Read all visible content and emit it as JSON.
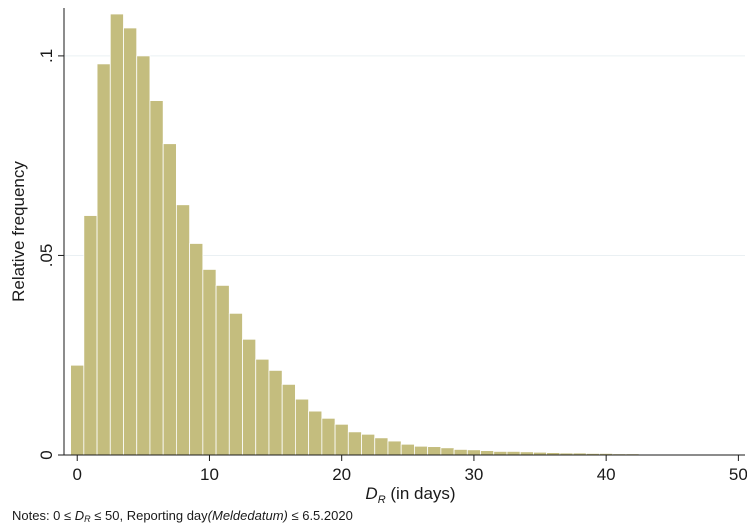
{
  "chart_data": {
    "type": "bar",
    "title": "",
    "ylabel": "Relative frequency",
    "xlabel": {
      "symbol": "D",
      "subscript": "R",
      "suffix": " (in days)"
    },
    "xlim": [
      -1,
      50.5
    ],
    "ylim": [
      0,
      0.112
    ],
    "xticks": [
      0,
      10,
      20,
      30,
      40,
      50
    ],
    "yticks": [
      0,
      0.05,
      0.1
    ],
    "ytick_labels": [
      "0",
      ".05",
      ".1"
    ],
    "grid": true,
    "bar_width": 1,
    "bar_color": "#c4bd7e",
    "bar_edge_color": "#ffffff",
    "x": [
      0,
      1,
      2,
      3,
      4,
      5,
      6,
      7,
      8,
      9,
      10,
      11,
      12,
      13,
      14,
      15,
      16,
      17,
      18,
      19,
      20,
      21,
      22,
      23,
      24,
      25,
      26,
      27,
      28,
      29,
      30,
      31,
      32,
      33,
      34,
      35,
      36,
      37,
      38,
      39,
      40,
      41,
      42,
      43,
      44,
      45,
      46,
      47,
      48,
      49,
      50
    ],
    "values": [
      0.0225,
      0.06,
      0.098,
      0.1105,
      0.107,
      0.1,
      0.0888,
      0.078,
      0.0627,
      0.053,
      0.0465,
      0.0425,
      0.0355,
      0.029,
      0.024,
      0.0212,
      0.0177,
      0.014,
      0.011,
      0.0092,
      0.0077,
      0.0058,
      0.0052,
      0.0043,
      0.0035,
      0.0027,
      0.0022,
      0.0021,
      0.0018,
      0.0014,
      0.0013,
      0.0011,
      0.0009,
      0.0009,
      0.0008,
      0.0007,
      0.0006,
      0.0005,
      0.0005,
      0.0004,
      0.0004,
      0.0003,
      0.0003,
      0.0002,
      0.0002,
      0.0002,
      0.0001,
      0.0001,
      0.0001,
      0.0001,
      0.0001
    ]
  },
  "notes": {
    "prefix": "Notes: 0 ≤ ",
    "symbol": "D",
    "subscript": "R",
    "middle": " ≤ 50, Reporting day",
    "italic": "(Meldedatum)",
    "suffix": " ≤ 6.5.2020"
  }
}
